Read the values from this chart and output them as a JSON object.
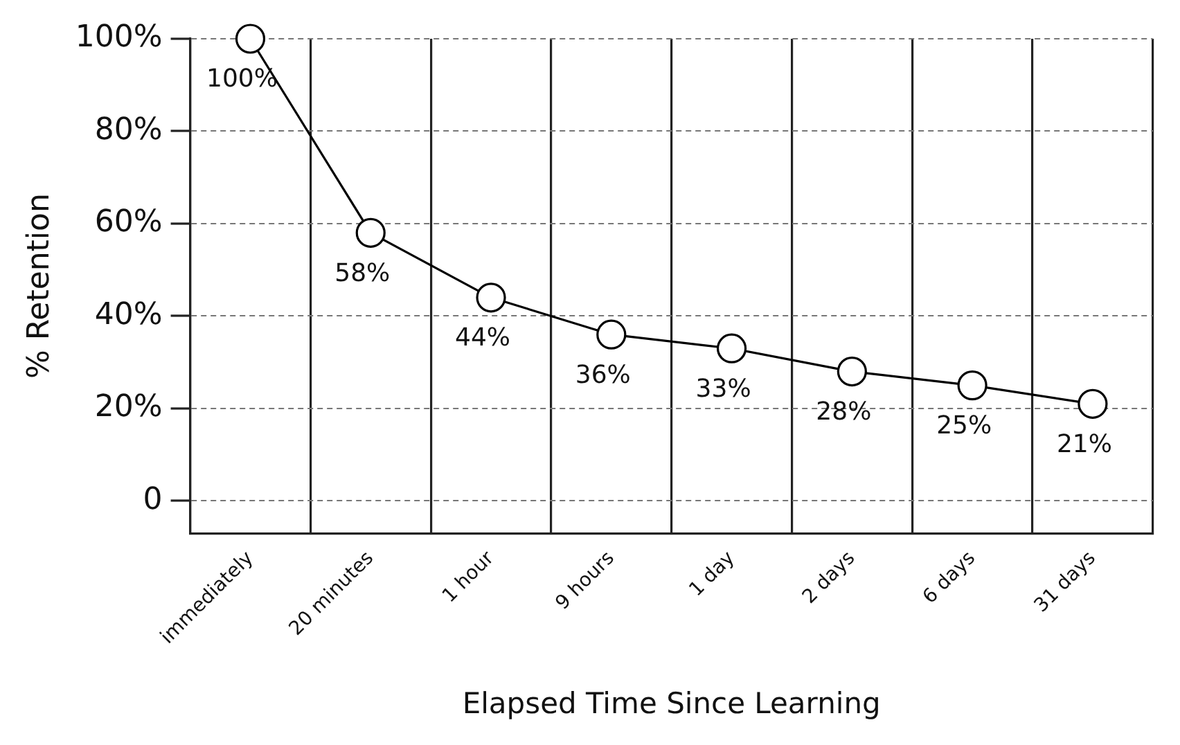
{
  "chart_data": {
    "type": "line",
    "xlabel": "Elapsed Time Since Learning",
    "ylabel": "% Retention",
    "categories": [
      "immediately",
      "20 minutes",
      "1 hour",
      "9 hours",
      "1 day",
      "2 days",
      "6 days",
      "31 days"
    ],
    "series": [
      {
        "color": "#000000",
        "values": [
          100,
          58,
          44,
          36,
          33,
          28,
          25,
          21
        ],
        "value_labels": [
          "100%",
          "58%",
          "44%",
          "36%",
          "33%",
          "28%",
          "25%",
          "21%"
        ]
      }
    ],
    "ylim": [
      -7,
      100
    ],
    "yticks": [
      0,
      {
        "value": 20,
        "label": "20%"
      },
      {
        "value": 40,
        "label": "40%"
      },
      {
        "value": 60,
        "label": "60%"
      },
      {
        "value": 80,
        "label": "80%"
      },
      {
        "value": 100,
        "label": "100%"
      }
    ],
    "grid": true,
    "legend": false,
    "marker": "circle",
    "line_style": "solid"
  }
}
